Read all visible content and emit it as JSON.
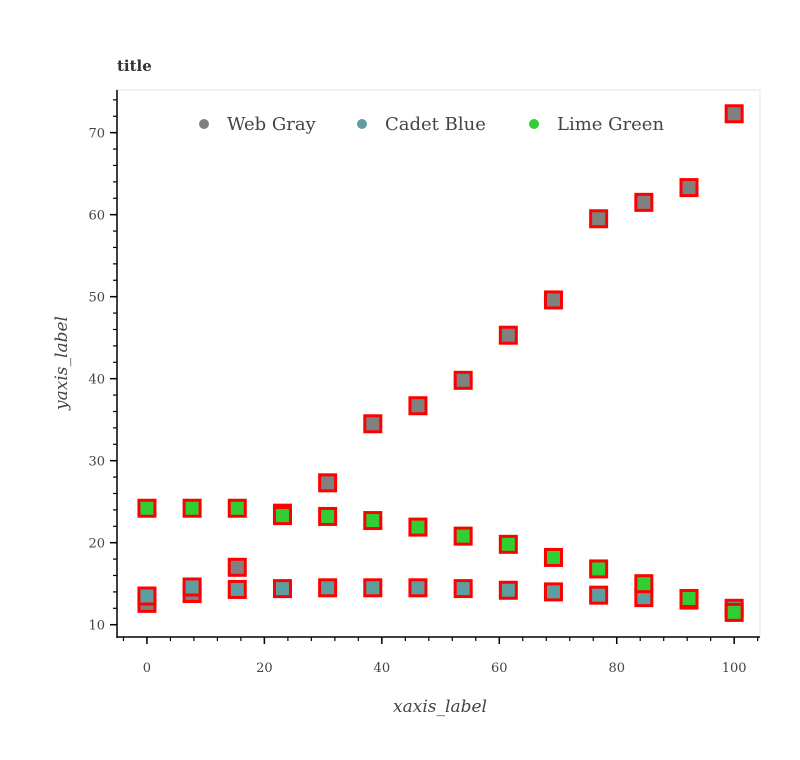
{
  "chart_data": {
    "type": "scatter",
    "title": "title",
    "xlabel": "xaxis_label",
    "ylabel": "yaxis_label",
    "xlim": [
      -5.1,
      104.4
    ],
    "ylim": [
      8.5,
      75.2
    ],
    "xticks": [
      0,
      20,
      40,
      60,
      80,
      100
    ],
    "yticks": [
      10,
      20,
      30,
      40,
      50,
      60,
      70
    ],
    "xtick_labels": [
      "0",
      "20",
      "40",
      "60",
      "80",
      "100"
    ],
    "ytick_labels": [
      "10",
      "20",
      "30",
      "40",
      "50",
      "60",
      "70"
    ],
    "grid": false,
    "legend_position": "top",
    "marker": "square",
    "marker_outline_color": "#ff0000",
    "x": [
      0,
      7.69,
      15.38,
      23.08,
      30.77,
      38.46,
      46.15,
      53.85,
      61.54,
      69.23,
      76.92,
      84.62,
      92.31,
      100
    ],
    "series": [
      {
        "name": "Web Gray",
        "color": "#808080",
        "values": [
          12.6,
          13.8,
          17.0,
          23.6,
          27.3,
          34.5,
          36.7,
          39.8,
          45.3,
          49.6,
          59.5,
          61.5,
          63.3,
          72.3
        ]
      },
      {
        "name": "Cadet Blue",
        "color": "#5f9ea0",
        "values": [
          13.5,
          14.6,
          14.3,
          14.4,
          14.5,
          14.5,
          14.5,
          14.4,
          14.2,
          14.0,
          13.6,
          13.3,
          13.0,
          12.0
        ]
      },
      {
        "name": "Lime Green",
        "color": "#32cd32",
        "values": [
          24.2,
          24.2,
          24.2,
          23.3,
          23.2,
          22.7,
          21.9,
          20.8,
          19.8,
          18.2,
          16.8,
          15.0,
          13.2,
          11.5
        ]
      }
    ]
  }
}
